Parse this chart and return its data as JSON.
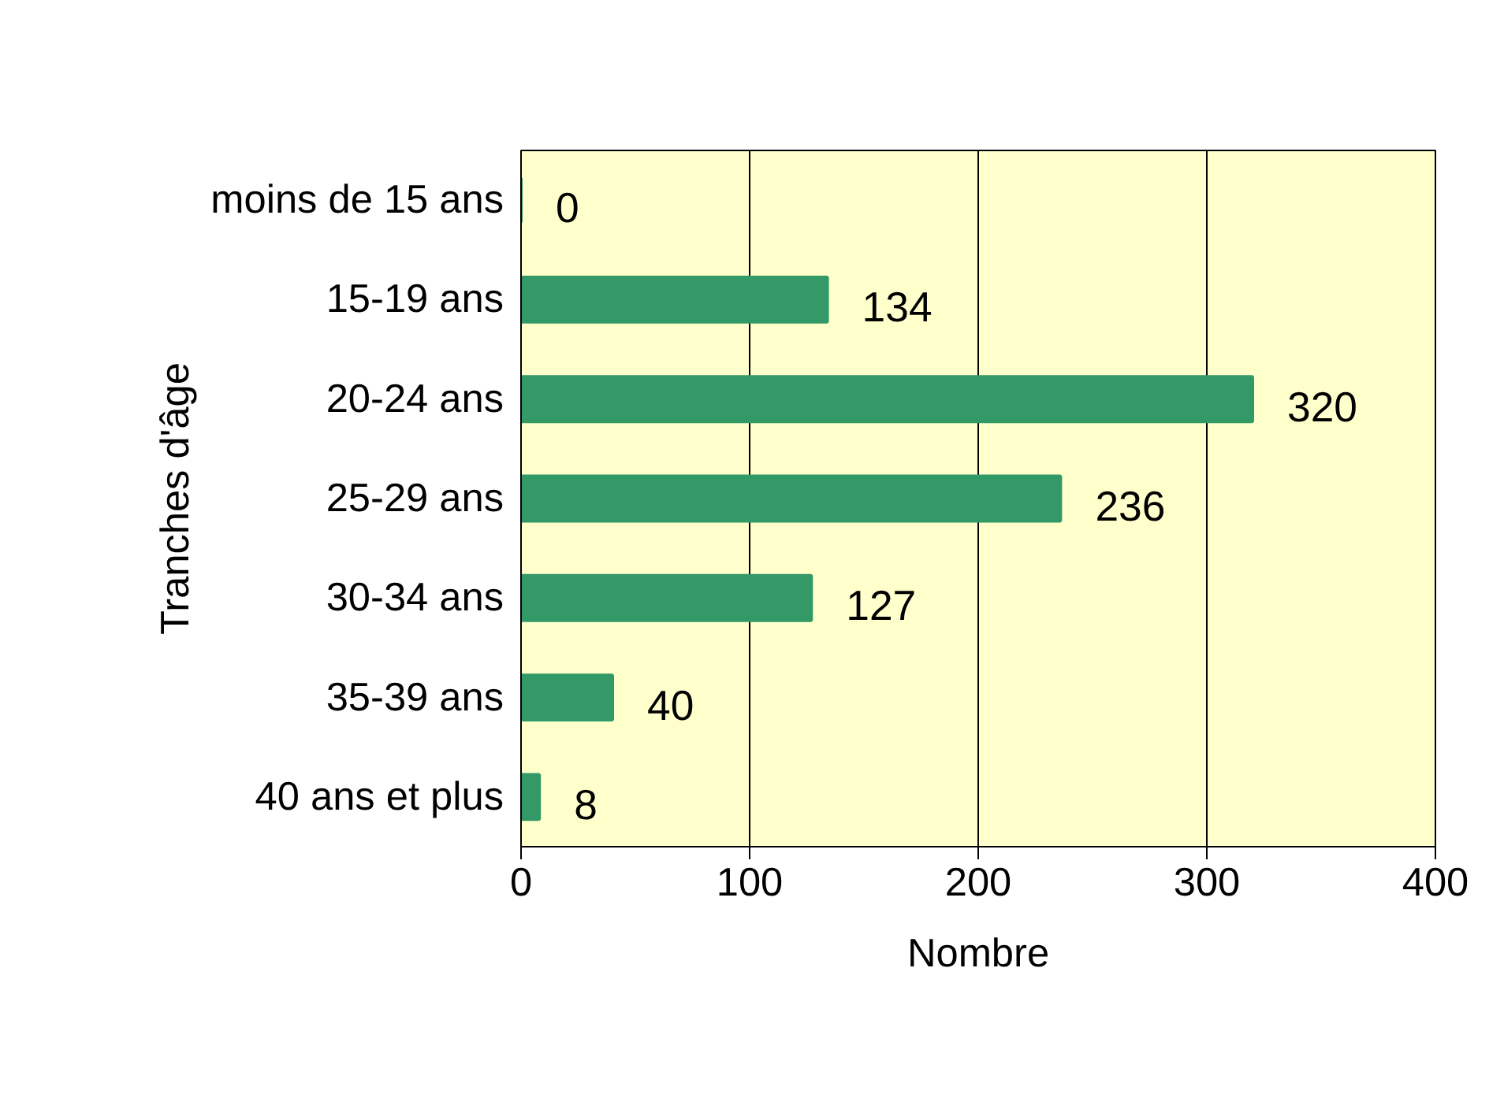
{
  "chart_data": {
    "type": "bar",
    "orientation": "horizontal",
    "xlabel": "Nombre",
    "ylabel": "Tranches d'âge",
    "categories": [
      "moins de 15 ans",
      "15-19 ans",
      "20-24 ans",
      "25-29 ans",
      "30-34 ans",
      "35-39 ans",
      "40 ans et plus"
    ],
    "values": [
      0,
      134,
      320,
      236,
      127,
      40,
      8
    ],
    "color": "#339966",
    "data_labels": true,
    "xlim": [
      0,
      400
    ],
    "xticks": [
      0,
      100,
      200,
      300,
      400
    ],
    "grid": "x"
  }
}
